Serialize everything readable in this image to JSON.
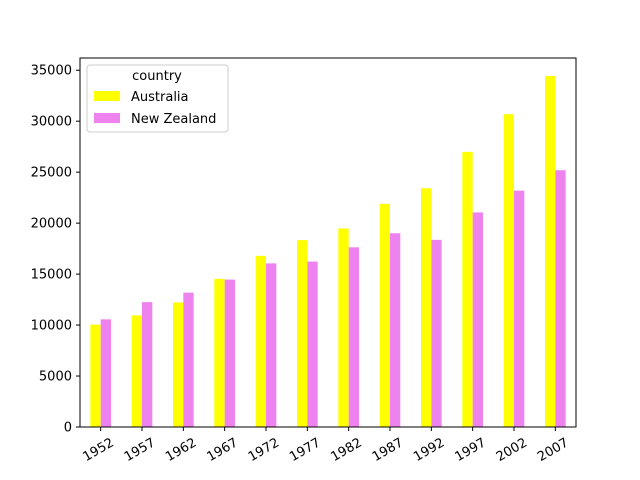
{
  "chart_data": {
    "type": "bar",
    "categories": [
      "1952",
      "1957",
      "1962",
      "1967",
      "1972",
      "1977",
      "1982",
      "1987",
      "1992",
      "1997",
      "2002",
      "2007"
    ],
    "series": [
      {
        "name": "Australia",
        "color": "#ffff00",
        "values": [
          10040,
          10950,
          12220,
          14530,
          16790,
          18330,
          19480,
          21890,
          23420,
          26990,
          30690,
          34440
        ]
      },
      {
        "name": "New Zealand",
        "color": "#ee82ee",
        "values": [
          10560,
          12250,
          13180,
          14460,
          16050,
          16230,
          17630,
          19010,
          18360,
          21050,
          23190,
          25190
        ]
      }
    ],
    "title": "",
    "xlabel": "",
    "ylabel": "",
    "ylim": [
      0,
      36200
    ],
    "yticks": [
      0,
      5000,
      10000,
      15000,
      20000,
      25000,
      30000,
      35000
    ],
    "grid": false,
    "legend": {
      "title": "country",
      "placement": "upper left"
    }
  }
}
